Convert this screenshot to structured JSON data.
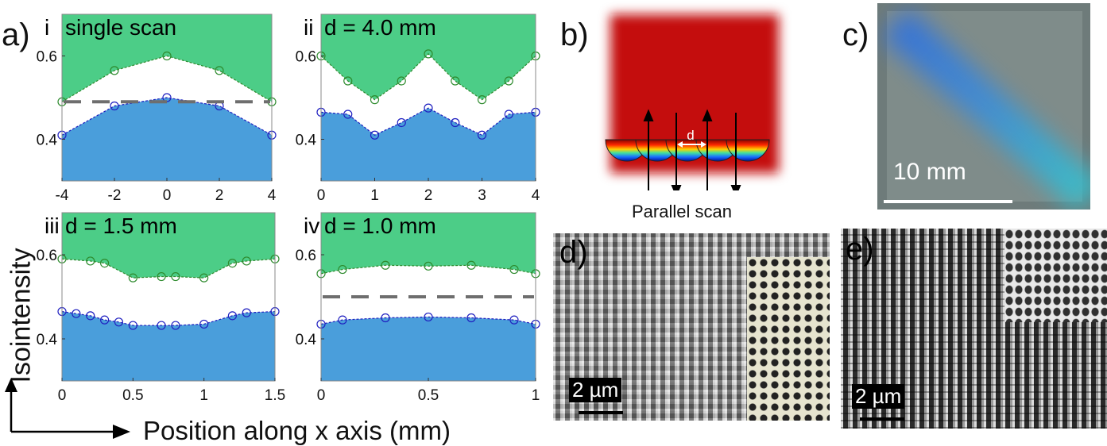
{
  "labels": {
    "a": "a)",
    "b": "b)",
    "c": "c)",
    "d": "d)",
    "e": "e)",
    "y_axis": "Isointensity",
    "x_axis": "Position along x axis (mm)",
    "scale_c": "10 mm",
    "scale_d": "2 µm",
    "scale_e": "2 µm",
    "parallel_scan": "Parallel scan",
    "d_symbol": "d"
  },
  "colors": {
    "green": "#4ccd87",
    "blue": "#4a9edb",
    "green_line": "#2e8b2e",
    "blue_line": "#2020c0",
    "dash": "#6e6e6e",
    "laser_red": "#c41010"
  },
  "chart_data": [
    {
      "type": "area",
      "panel": "i",
      "annotation": "single scan",
      "xlim": [
        -4,
        4
      ],
      "ylim": [
        0.3,
        0.7
      ],
      "xticks": [
        "-4",
        "-2",
        "0",
        "2",
        "4"
      ],
      "xtick_values": [
        -4,
        -2,
        0,
        2,
        4
      ],
      "yticks": [
        "0.4",
        "0.6"
      ],
      "ytick_values": [
        0.4,
        0.6
      ],
      "dashed_line": 0.49,
      "series": [
        {
          "x": [
            -4,
            -2,
            0,
            2,
            4
          ],
          "values": [
            0.49,
            0.565,
            0.6,
            0.565,
            0.49
          ]
        },
        {
          "x": [
            -4,
            -2,
            0,
            2,
            4
          ],
          "values": [
            0.41,
            0.48,
            0.5,
            0.48,
            0.41
          ]
        }
      ]
    },
    {
      "type": "area",
      "panel": "ii",
      "annotation": "d = 4.0 mm",
      "xlim": [
        0,
        4
      ],
      "ylim": [
        0.3,
        0.7
      ],
      "xticks": [
        "0",
        "1",
        "2",
        "3",
        "4"
      ],
      "xtick_values": [
        0,
        1,
        2,
        3,
        4
      ],
      "yticks": [
        "0.4",
        "0.6"
      ],
      "ytick_values": [
        0.4,
        0.6
      ],
      "dashed_line": null,
      "series": [
        {
          "x": [
            0,
            0.5,
            1,
            1.5,
            2,
            2.5,
            3,
            3.5,
            4
          ],
          "values": [
            0.6,
            0.54,
            0.495,
            0.54,
            0.605,
            0.54,
            0.495,
            0.54,
            0.6
          ]
        },
        {
          "x": [
            0,
            0.5,
            1,
            1.5,
            2,
            2.5,
            3,
            3.5,
            4
          ],
          "values": [
            0.465,
            0.46,
            0.41,
            0.44,
            0.475,
            0.44,
            0.41,
            0.46,
            0.465
          ]
        }
      ]
    },
    {
      "type": "area",
      "panel": "iii",
      "annotation": "d = 1.5 mm",
      "xlim": [
        0,
        1.5
      ],
      "ylim": [
        0.3,
        0.7
      ],
      "xticks": [
        "0",
        "0.5",
        "1",
        "1.5"
      ],
      "xtick_values": [
        0,
        0.5,
        1,
        1.5
      ],
      "yticks": [
        "0.4",
        "0.6"
      ],
      "ytick_values": [
        0.4,
        0.6
      ],
      "dashed_line": null,
      "series": [
        {
          "x": [
            0,
            0.2,
            0.3,
            0.5,
            0.7,
            0.8,
            1.0,
            1.2,
            1.3,
            1.5
          ],
          "values": [
            0.59,
            0.585,
            0.58,
            0.545,
            0.548,
            0.548,
            0.545,
            0.58,
            0.585,
            0.59
          ]
        },
        {
          "x": [
            0,
            0.1,
            0.2,
            0.3,
            0.4,
            0.5,
            0.7,
            0.8,
            1.0,
            1.2,
            1.3,
            1.5
          ],
          "values": [
            0.465,
            0.46,
            0.455,
            0.445,
            0.44,
            0.432,
            0.432,
            0.432,
            0.435,
            0.455,
            0.462,
            0.465
          ]
        }
      ]
    },
    {
      "type": "area",
      "panel": "iv",
      "annotation": "d = 1.0 mm",
      "xlim": [
        0,
        1
      ],
      "ylim": [
        0.3,
        0.7
      ],
      "xticks": [
        "0",
        "0.5",
        "1"
      ],
      "xtick_values": [
        0,
        0.5,
        1
      ],
      "yticks": [
        "0.4",
        "0.6"
      ],
      "ytick_values": [
        0.4,
        0.6
      ],
      "dashed_line": 0.5,
      "series": [
        {
          "x": [
            0,
            0.1,
            0.3,
            0.5,
            0.7,
            0.9,
            1.0
          ],
          "values": [
            0.555,
            0.565,
            0.575,
            0.573,
            0.575,
            0.565,
            0.555
          ]
        },
        {
          "x": [
            0,
            0.1,
            0.3,
            0.5,
            0.7,
            0.9,
            1.0
          ],
          "values": [
            0.435,
            0.445,
            0.45,
            0.452,
            0.45,
            0.445,
            0.435
          ]
        }
      ]
    }
  ]
}
